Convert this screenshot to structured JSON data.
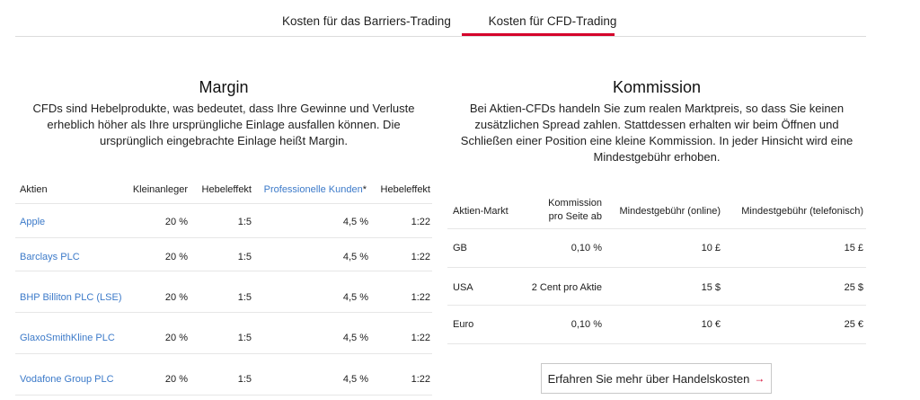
{
  "tabs": [
    {
      "label": "Kosten für das Barriers-Trading",
      "active": false
    },
    {
      "label": "Kosten für CFD-Trading",
      "active": true
    }
  ],
  "accent_color": "#d4002b",
  "link_color": "#3c7ac9",
  "margin": {
    "title": "Margin",
    "text": "CFDs sind Hebelprodukte, was bedeutet, dass Ihre Gewinne und Verluste erheblich höher als Ihre ursprüngliche Einlage ausfallen können. Die ursprünglich eingebrachte Einlage heißt Margin.",
    "columns": [
      "Aktien",
      "Kleinanleger",
      "Hebeleffekt",
      "Professionelle Kunden",
      "*",
      "Hebeleffekt"
    ],
    "rows": [
      [
        "Apple",
        "20 %",
        "1:5",
        "4,5 %",
        "1:22"
      ],
      [
        "Barclays PLC",
        "20 %",
        "1:5",
        "4,5 %",
        "1:22"
      ],
      [
        "BHP Billiton PLC (LSE)",
        "20 %",
        "1:5",
        "4,5 %",
        "1:22"
      ],
      [
        "GlaxoSmithKline PLC",
        "20 %",
        "1:5",
        "4,5 %",
        "1:22"
      ],
      [
        "Vodafone Group PLC",
        "20 %",
        "1:5",
        "4,5 %",
        "1:22"
      ]
    ]
  },
  "commission": {
    "title": "Kommission",
    "text": "Bei Aktien-CFDs handeln Sie zum realen Marktpreis, so dass Sie keinen zusätzlichen Spread zahlen. Stattdessen erhalten wir beim Öffnen und Schließen einer Position eine kleine Kommission. In jeder Hinsicht wird eine Mindestgebühr erhoben.",
    "columns": [
      "Aktien-Markt",
      "Kommission",
      "pro Seite ab",
      "Mindestgebühr (online)",
      "Mindestgebühr (telefonisch)"
    ],
    "rows": [
      [
        "GB",
        "0,10 %",
        "10 £",
        "15 £"
      ],
      [
        "USA",
        "2 Cent pro Aktie",
        "15 $",
        "25 $"
      ],
      [
        "Euro",
        "0,10 %",
        "10 €",
        "25 €"
      ]
    ]
  },
  "cta": {
    "label": "Erfahren Sie mehr über Handelskosten",
    "icon": "arrow-right-icon"
  }
}
